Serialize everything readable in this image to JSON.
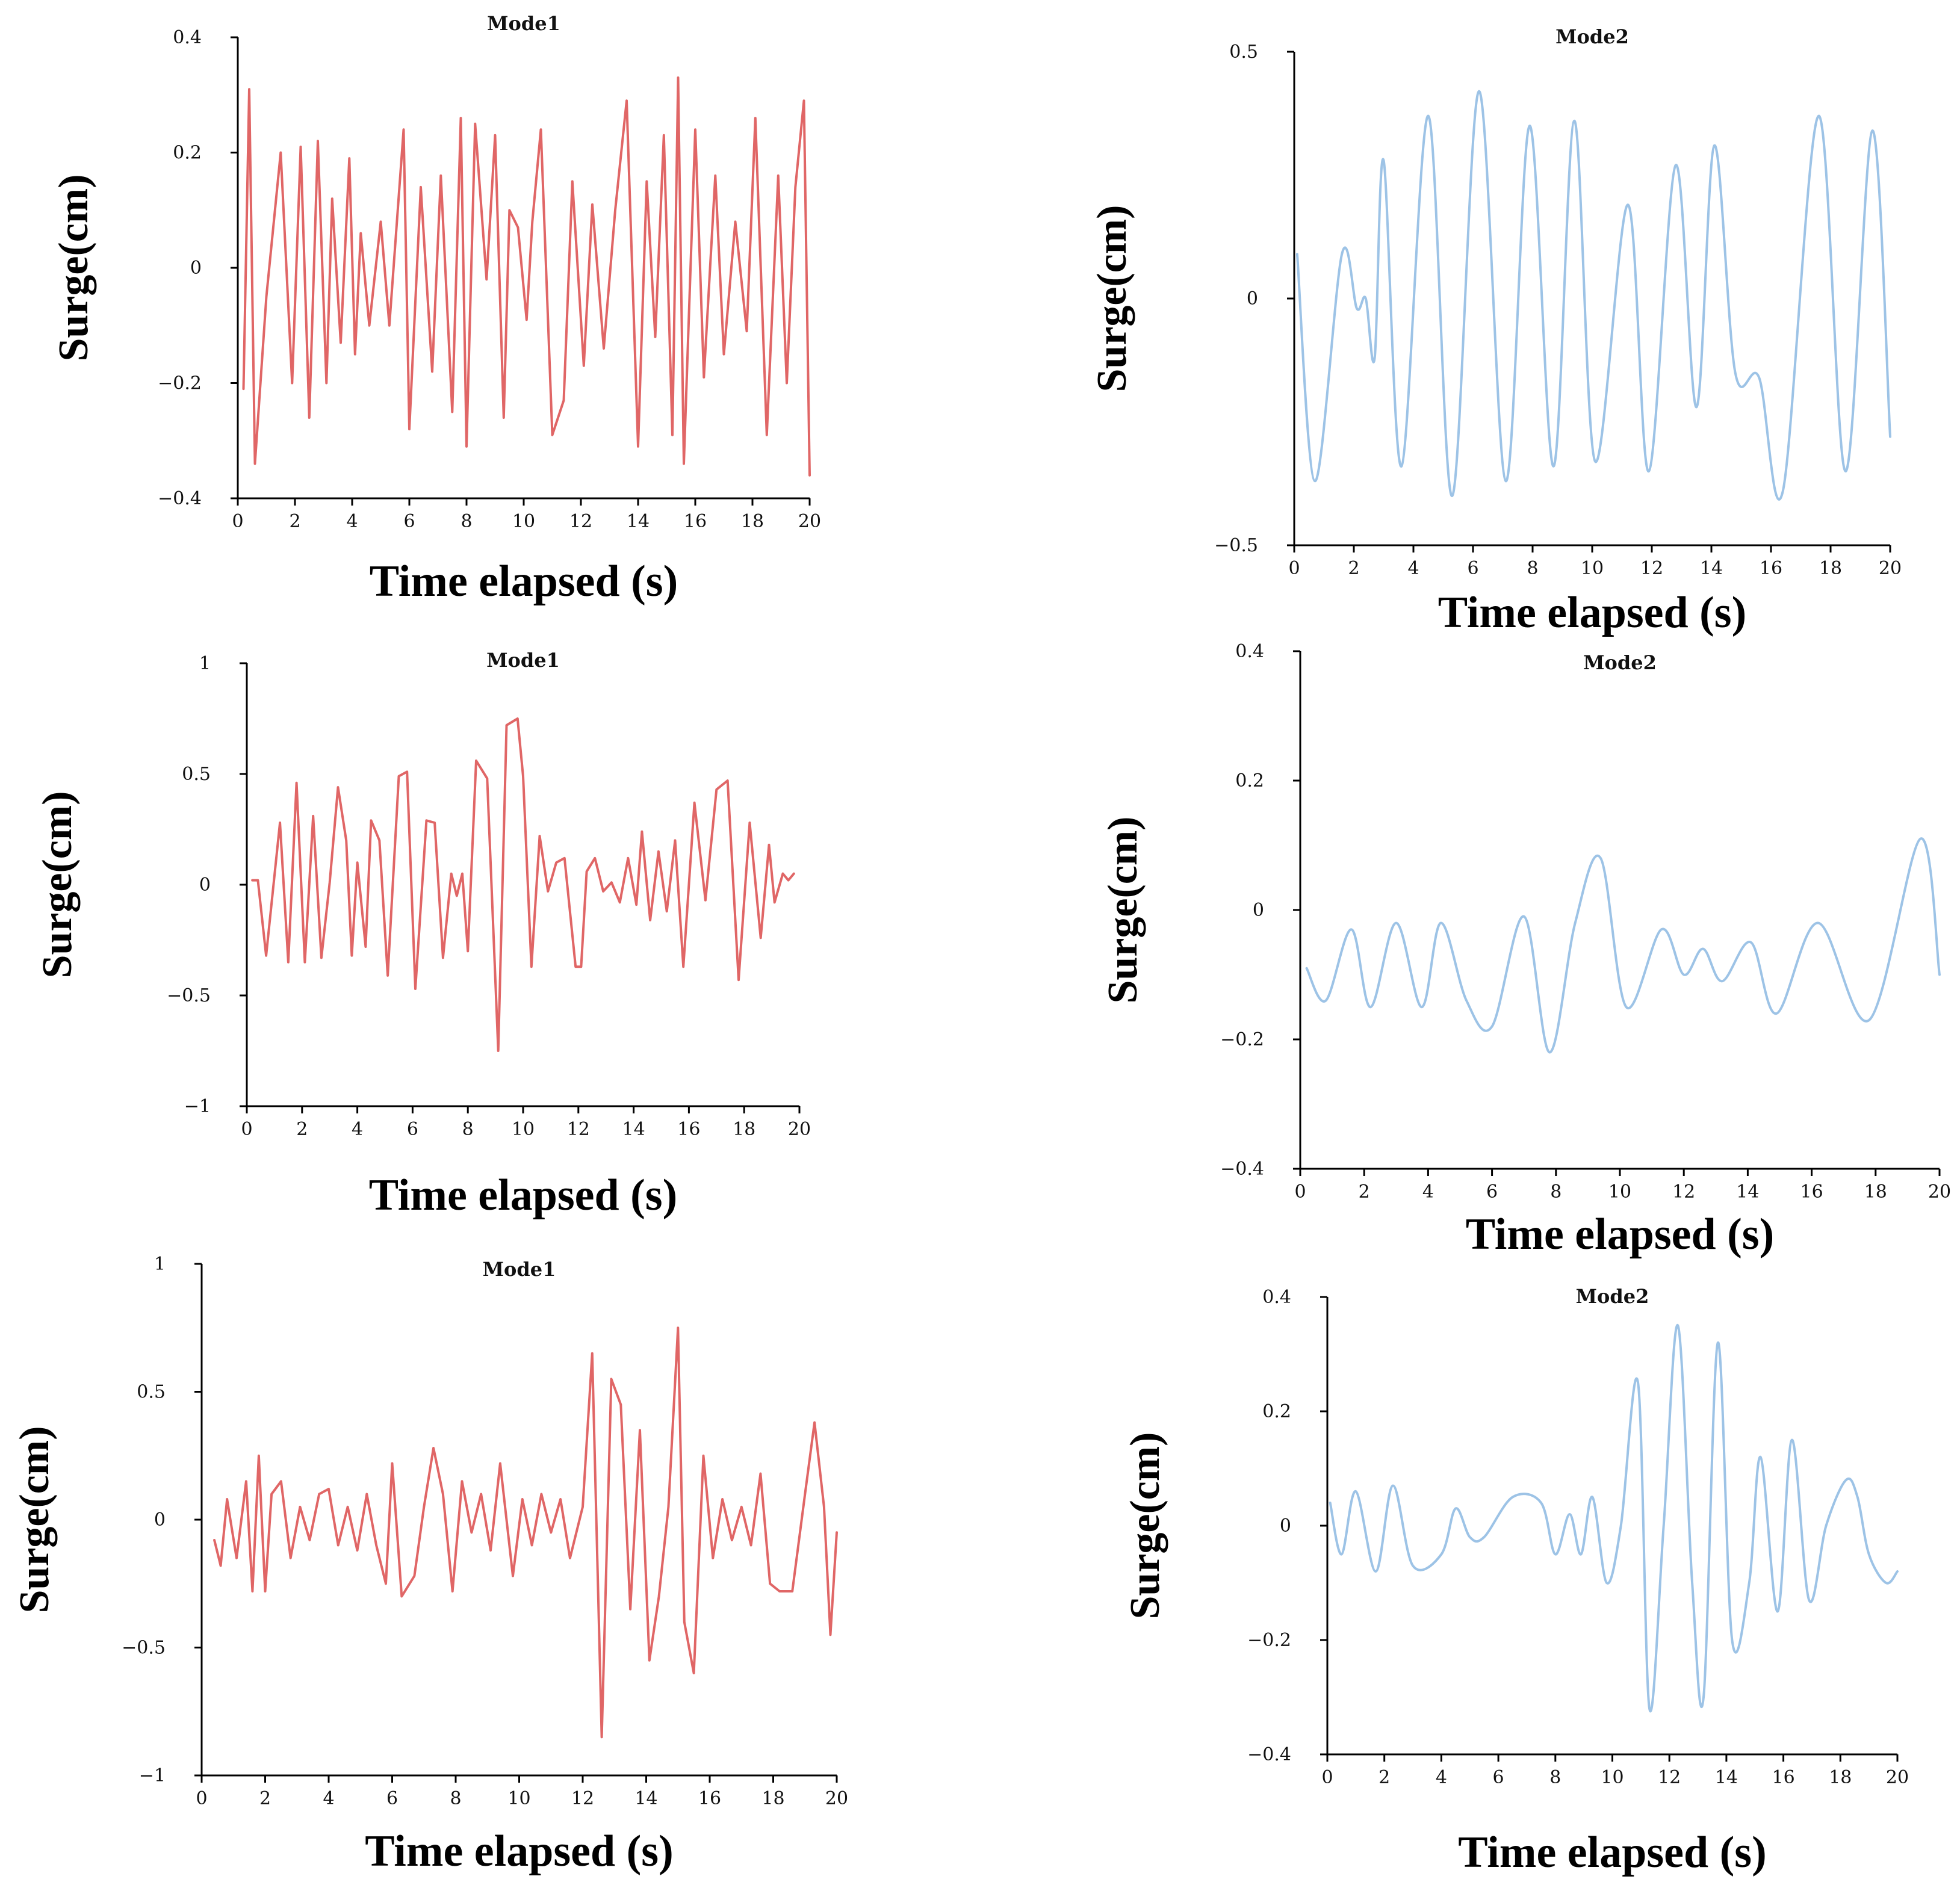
{
  "colors": {
    "mode1": "#e06666",
    "mode2": "#9dc3e6",
    "axis": "#000000"
  },
  "chart_data": [
    {
      "type": "line",
      "title": "Mode1",
      "xlabel": "Time elapsed (s)",
      "ylabel": "Surge(cm)",
      "xlim": [
        0,
        20
      ],
      "ylim": [
        -0.4,
        0.4
      ],
      "xticks": [
        0,
        2,
        4,
        6,
        8,
        10,
        12,
        14,
        16,
        18,
        20
      ],
      "xtick_labels": [
        "0",
        "2",
        "4",
        "6",
        "8",
        "10",
        "12",
        "14",
        "16",
        "18",
        "20"
      ],
      "yticks": [
        -0.4,
        -0.2,
        0,
        0.2,
        0.4
      ],
      "ytick_labels": [
        "−0.4",
        "−0.2",
        "0",
        "0.2",
        "0.4"
      ],
      "series": [
        {
          "name": "Mode1",
          "color": "mode1",
          "smooth": false,
          "x": [
            0.2,
            0.4,
            0.6,
            1.0,
            1.5,
            1.9,
            2.2,
            2.5,
            2.8,
            3.1,
            3.3,
            3.6,
            3.9,
            4.1,
            4.3,
            4.6,
            5.0,
            5.3,
            5.8,
            6.0,
            6.4,
            6.8,
            7.1,
            7.5,
            7.8,
            8.0,
            8.3,
            8.7,
            9.0,
            9.3,
            9.5,
            9.8,
            10.1,
            10.3,
            10.6,
            11.0,
            11.4,
            11.7,
            12.1,
            12.4,
            12.8,
            13.2,
            13.6,
            14.0,
            14.3,
            14.6,
            14.9,
            15.2,
            15.4,
            15.6,
            16.0,
            16.3,
            16.7,
            17.0,
            17.4,
            17.8,
            18.1,
            18.5,
            18.9,
            19.2,
            19.5,
            19.8,
            20.0
          ],
          "y": [
            -0.21,
            0.31,
            -0.34,
            -0.05,
            0.2,
            -0.2,
            0.21,
            -0.26,
            0.22,
            -0.2,
            0.12,
            -0.13,
            0.19,
            -0.15,
            0.06,
            -0.1,
            0.08,
            -0.1,
            0.24,
            -0.28,
            0.14,
            -0.18,
            0.16,
            -0.25,
            0.26,
            -0.31,
            0.25,
            -0.02,
            0.23,
            -0.26,
            0.1,
            0.07,
            -0.09,
            0.08,
            0.24,
            -0.29,
            -0.23,
            0.15,
            -0.17,
            0.11,
            -0.14,
            0.1,
            0.29,
            -0.31,
            0.15,
            -0.12,
            0.23,
            -0.29,
            0.33,
            -0.34,
            0.24,
            -0.19,
            0.16,
            -0.15,
            0.08,
            -0.11,
            0.26,
            -0.29,
            0.16,
            -0.2,
            0.14,
            0.29,
            -0.36
          ]
        }
      ]
    },
    {
      "type": "line",
      "title": "Mode2",
      "xlabel": "Time elapsed (s)",
      "ylabel": "Surge(cm)",
      "xlim": [
        0,
        20
      ],
      "ylim": [
        -0.5,
        0.5
      ],
      "xticks": [
        0,
        2,
        4,
        6,
        8,
        10,
        12,
        14,
        16,
        18,
        20
      ],
      "xtick_labels": [
        "0",
        "2",
        "4",
        "6",
        "8",
        "10",
        "12",
        "14",
        "16",
        "18",
        "20"
      ],
      "yticks": [
        -0.5,
        0,
        0.5
      ],
      "ytick_labels": [
        "−0.5",
        "0",
        "0.5"
      ],
      "series": [
        {
          "name": "Mode2",
          "color": "mode2",
          "smooth": true,
          "x": [
            0.1,
            0.7,
            1.6,
            2.1,
            2.4,
            2.7,
            3.0,
            3.6,
            4.5,
            5.3,
            6.2,
            7.1,
            7.9,
            8.7,
            9.4,
            10.1,
            11.2,
            11.9,
            12.8,
            13.5,
            14.1,
            14.8,
            15.6,
            16.4,
            17.6,
            18.5,
            19.4,
            20.0
          ],
          "y": [
            0.09,
            -0.37,
            0.09,
            -0.02,
            0.0,
            -0.12,
            0.28,
            -0.34,
            0.37,
            -0.4,
            0.42,
            -0.37,
            0.35,
            -0.34,
            0.36,
            -0.33,
            0.19,
            -0.35,
            0.27,
            -0.22,
            0.31,
            -0.15,
            -0.16,
            -0.39,
            0.37,
            -0.35,
            0.34,
            -0.28
          ]
        }
      ]
    },
    {
      "type": "line",
      "title": "Mode1",
      "xlabel": "Time elapsed (s)",
      "ylabel": "Surge(cm)",
      "xlim": [
        0,
        20
      ],
      "ylim": [
        -1,
        1
      ],
      "xticks": [
        0,
        2,
        4,
        6,
        8,
        10,
        12,
        14,
        16,
        18,
        20
      ],
      "xtick_labels": [
        "0",
        "2",
        "4",
        "6",
        "8",
        "10",
        "12",
        "14",
        "16",
        "18",
        "20"
      ],
      "yticks": [
        -1,
        -0.5,
        0,
        0.5,
        1
      ],
      "ytick_labels": [
        "−1",
        "−0.5",
        "0",
        "0.5",
        "1"
      ],
      "series": [
        {
          "name": "Mode1",
          "color": "mode1",
          "smooth": false,
          "x": [
            0.2,
            0.4,
            0.7,
            1.2,
            1.5,
            1.8,
            2.1,
            2.4,
            2.7,
            3.0,
            3.3,
            3.6,
            3.8,
            4.0,
            4.3,
            4.5,
            4.8,
            5.1,
            5.5,
            5.8,
            6.1,
            6.5,
            6.8,
            7.1,
            7.4,
            7.6,
            7.8,
            8.0,
            8.3,
            8.7,
            9.1,
            9.4,
            9.8,
            10.0,
            10.3,
            10.6,
            10.9,
            11.2,
            11.5,
            11.9,
            12.1,
            12.3,
            12.6,
            12.9,
            13.2,
            13.5,
            13.8,
            14.1,
            14.3,
            14.6,
            14.9,
            15.2,
            15.5,
            15.8,
            16.2,
            16.6,
            17.0,
            17.4,
            17.8,
            18.2,
            18.6,
            18.9,
            19.1,
            19.4,
            19.6,
            19.8
          ],
          "y": [
            0.02,
            0.02,
            -0.32,
            0.28,
            -0.35,
            0.46,
            -0.35,
            0.31,
            -0.33,
            0.01,
            0.44,
            0.2,
            -0.32,
            0.1,
            -0.28,
            0.29,
            0.2,
            -0.41,
            0.49,
            0.51,
            -0.47,
            0.29,
            0.28,
            -0.33,
            0.05,
            -0.05,
            0.05,
            -0.3,
            0.56,
            0.48,
            -0.75,
            0.72,
            0.75,
            0.49,
            -0.37,
            0.22,
            -0.03,
            0.1,
            0.12,
            -0.37,
            -0.37,
            0.06,
            0.12,
            -0.03,
            0.01,
            -0.08,
            0.12,
            -0.09,
            0.24,
            -0.16,
            0.15,
            -0.12,
            0.2,
            -0.37,
            0.37,
            -0.07,
            0.43,
            0.47,
            -0.43,
            0.28,
            -0.24,
            0.18,
            -0.08,
            0.05,
            0.02,
            0.05
          ]
        }
      ]
    },
    {
      "type": "line",
      "title": "Mode2",
      "xlabel": "Time elapsed (s)",
      "ylabel": "Surge(cm)",
      "xlim": [
        0,
        20
      ],
      "ylim": [
        -0.4,
        0.4
      ],
      "xticks": [
        0,
        2,
        4,
        6,
        8,
        10,
        12,
        14,
        16,
        18,
        20
      ],
      "xtick_labels": [
        "0",
        "2",
        "4",
        "6",
        "8",
        "10",
        "12",
        "14",
        "16",
        "18",
        "20"
      ],
      "yticks": [
        -0.4,
        -0.2,
        0,
        0.2,
        0.4
      ],
      "ytick_labels": [
        "−0.4",
        "−0.2",
        "0",
        "0.2",
        "0.4"
      ],
      "series": [
        {
          "name": "Mode2",
          "color": "mode2",
          "smooth": true,
          "x": [
            0.2,
            0.8,
            1.6,
            2.2,
            3.0,
            3.8,
            4.4,
            5.2,
            6.0,
            7.0,
            7.8,
            8.6,
            9.4,
            10.2,
            11.3,
            12.0,
            12.6,
            13.2,
            14.1,
            14.9,
            16.2,
            17.8,
            19.4,
            20.0
          ],
          "y": [
            -0.09,
            -0.14,
            -0.03,
            -0.15,
            -0.02,
            -0.15,
            -0.02,
            -0.14,
            -0.18,
            -0.01,
            -0.22,
            -0.02,
            0.08,
            -0.15,
            -0.03,
            -0.1,
            -0.06,
            -0.11,
            -0.05,
            -0.16,
            -0.02,
            -0.17,
            0.11,
            -0.1
          ]
        }
      ]
    },
    {
      "type": "line",
      "title": "Mode1",
      "xlabel": "Time elapsed (s)",
      "ylabel": "Surge(cm)",
      "xlim": [
        0,
        20
      ],
      "ylim": [
        -1,
        1
      ],
      "xticks": [
        0,
        2,
        4,
        6,
        8,
        10,
        12,
        14,
        16,
        18,
        20
      ],
      "xtick_labels": [
        "0",
        "2",
        "4",
        "6",
        "8",
        "10",
        "12",
        "14",
        "16",
        "18",
        "20"
      ],
      "yticks": [
        -1,
        -0.5,
        0,
        0.5,
        1
      ],
      "ytick_labels": [
        "−1",
        "−0.5",
        "0",
        "0.5",
        "1"
      ],
      "series": [
        {
          "name": "Mode1",
          "color": "mode1",
          "smooth": false,
          "x": [
            0.4,
            0.6,
            0.8,
            1.1,
            1.4,
            1.6,
            1.8,
            2.0,
            2.2,
            2.5,
            2.8,
            3.1,
            3.4,
            3.7,
            4.0,
            4.3,
            4.6,
            4.9,
            5.2,
            5.5,
            5.8,
            6.0,
            6.3,
            6.7,
            7.0,
            7.3,
            7.6,
            7.9,
            8.2,
            8.5,
            8.8,
            9.1,
            9.4,
            9.8,
            10.1,
            10.4,
            10.7,
            11.0,
            11.3,
            11.6,
            12.0,
            12.3,
            12.6,
            12.9,
            13.2,
            13.5,
            13.8,
            14.1,
            14.4,
            14.7,
            15.0,
            15.2,
            15.5,
            15.8,
            16.1,
            16.4,
            16.7,
            17.0,
            17.3,
            17.6,
            17.9,
            18.2,
            18.6,
            19.0,
            19.3,
            19.6,
            19.8,
            20.0
          ],
          "y": [
            -0.08,
            -0.18,
            0.08,
            -0.15,
            0.15,
            -0.28,
            0.25,
            -0.28,
            0.1,
            0.15,
            -0.15,
            0.05,
            -0.08,
            0.1,
            0.12,
            -0.1,
            0.05,
            -0.12,
            0.1,
            -0.1,
            -0.25,
            0.22,
            -0.3,
            -0.22,
            0.05,
            0.28,
            0.1,
            -0.28,
            0.15,
            -0.05,
            0.1,
            -0.12,
            0.22,
            -0.22,
            0.08,
            -0.1,
            0.1,
            -0.05,
            0.08,
            -0.15,
            0.05,
            0.65,
            -0.85,
            0.55,
            0.45,
            -0.35,
            0.35,
            -0.55,
            -0.3,
            0.05,
            0.75,
            -0.4,
            -0.6,
            0.25,
            -0.15,
            0.08,
            -0.08,
            0.05,
            -0.1,
            0.18,
            -0.25,
            -0.28,
            -0.28,
            0.1,
            0.38,
            0.05,
            -0.45,
            -0.05
          ]
        }
      ]
    },
    {
      "type": "line",
      "title": "Mode2",
      "xlabel": "Time elapsed (s)",
      "ylabel": "Surge(cm)",
      "xlim": [
        0,
        20
      ],
      "ylim": [
        -0.4,
        0.4
      ],
      "xticks": [
        0,
        2,
        4,
        6,
        8,
        10,
        12,
        14,
        16,
        18,
        20
      ],
      "xtick_labels": [
        "0",
        "2",
        "4",
        "6",
        "8",
        "10",
        "12",
        "14",
        "16",
        "18",
        "20"
      ],
      "yticks": [
        -0.4,
        -0.2,
        0,
        0.2,
        0.4
      ],
      "ytick_labels": [
        "−0.4",
        "−0.2",
        "0",
        "0.2",
        "0.4"
      ],
      "series": [
        {
          "name": "Mode2",
          "color": "mode2",
          "smooth": true,
          "x": [
            0.1,
            0.5,
            1.0,
            1.7,
            2.3,
            3.0,
            4.0,
            4.5,
            5.0,
            5.5,
            6.5,
            7.5,
            8.0,
            8.5,
            8.9,
            9.3,
            9.8,
            10.3,
            10.9,
            11.3,
            11.8,
            12.3,
            12.8,
            13.2,
            13.7,
            14.2,
            14.8,
            15.2,
            15.8,
            16.3,
            16.9,
            17.5,
            18.2,
            18.6,
            19.0,
            19.6,
            20.0
          ],
          "y": [
            0.04,
            -0.05,
            0.06,
            -0.08,
            0.07,
            -0.07,
            -0.05,
            0.03,
            -0.02,
            -0.02,
            0.05,
            0.04,
            -0.05,
            0.02,
            -0.05,
            0.05,
            -0.1,
            0.0,
            0.25,
            -0.32,
            0.0,
            0.35,
            -0.1,
            -0.3,
            0.32,
            -0.2,
            -0.1,
            0.12,
            -0.15,
            0.15,
            -0.13,
            0.0,
            0.08,
            0.05,
            -0.05,
            -0.1,
            -0.08
          ]
        }
      ]
    }
  ]
}
